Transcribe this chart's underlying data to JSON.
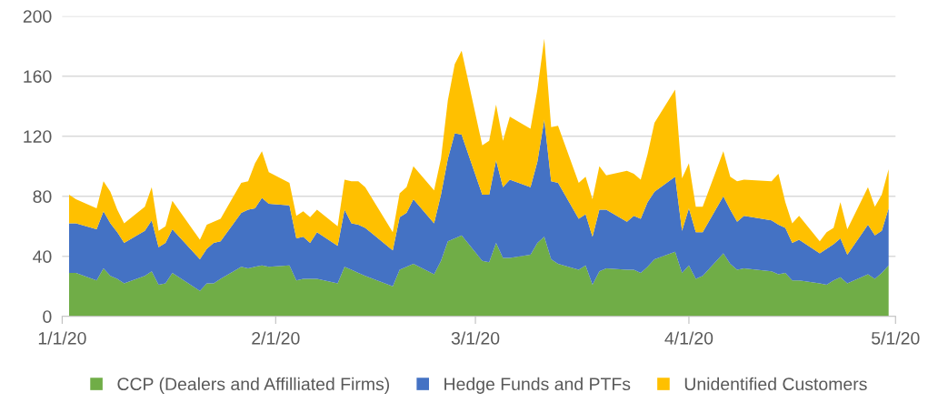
{
  "chart_data": {
    "type": "area",
    "stacked": true,
    "x": [
      "2020-01-02",
      "2020-01-03",
      "2020-01-06",
      "2020-01-07",
      "2020-01-08",
      "2020-01-09",
      "2020-01-10",
      "2020-01-13",
      "2020-01-14",
      "2020-01-15",
      "2020-01-16",
      "2020-01-17",
      "2020-01-21",
      "2020-01-22",
      "2020-01-23",
      "2020-01-24",
      "2020-01-27",
      "2020-01-28",
      "2020-01-29",
      "2020-01-30",
      "2020-01-31",
      "2020-02-03",
      "2020-02-04",
      "2020-02-05",
      "2020-02-06",
      "2020-02-07",
      "2020-02-10",
      "2020-02-11",
      "2020-02-12",
      "2020-02-13",
      "2020-02-14",
      "2020-02-18",
      "2020-02-19",
      "2020-02-20",
      "2020-02-21",
      "2020-02-24",
      "2020-02-25",
      "2020-02-26",
      "2020-02-27",
      "2020-02-28",
      "2020-03-02",
      "2020-03-03",
      "2020-03-04",
      "2020-03-05",
      "2020-03-06",
      "2020-03-09",
      "2020-03-10",
      "2020-03-11",
      "2020-03-12",
      "2020-03-13",
      "2020-03-16",
      "2020-03-17",
      "2020-03-18",
      "2020-03-19",
      "2020-03-20",
      "2020-03-23",
      "2020-03-24",
      "2020-03-25",
      "2020-03-26",
      "2020-03-27",
      "2020-03-30",
      "2020-03-31",
      "2020-04-01",
      "2020-04-02",
      "2020-04-03",
      "2020-04-06",
      "2020-04-07",
      "2020-04-08",
      "2020-04-09",
      "2020-04-13",
      "2020-04-14",
      "2020-04-15",
      "2020-04-16",
      "2020-04-17",
      "2020-04-20",
      "2020-04-21",
      "2020-04-22",
      "2020-04-23",
      "2020-04-24",
      "2020-04-27",
      "2020-04-28",
      "2020-04-29",
      "2020-04-30"
    ],
    "series": [
      {
        "name": "CCP (Dealers and Affilliated Firms)",
        "color": "#70ad47",
        "values": [
          29,
          29,
          24,
          32,
          27,
          25,
          22,
          27,
          30,
          21,
          22,
          29,
          17,
          22,
          22,
          25,
          33,
          32,
          33,
          34,
          33,
          34,
          24,
          25,
          25,
          25,
          22,
          33,
          31,
          29,
          27,
          20,
          31,
          33,
          35,
          28,
          37,
          50,
          52,
          54,
          37,
          36,
          49,
          39,
          39,
          41,
          49,
          53,
          38,
          35,
          31,
          34,
          21,
          30,
          32,
          31,
          31,
          29,
          33,
          38,
          43,
          29,
          34,
          25,
          27,
          42,
          35,
          31,
          32,
          30,
          28,
          29,
          24,
          24,
          22,
          21,
          24,
          26,
          22,
          28,
          25,
          29,
          34
        ]
      },
      {
        "name": "Hedge Funds and PTFs",
        "color": "#4472c4",
        "values": [
          33,
          33,
          34,
          38,
          35,
          31,
          27,
          30,
          34,
          25,
          27,
          29,
          21,
          23,
          27,
          25,
          36,
          39,
          39,
          45,
          42,
          40,
          28,
          28,
          24,
          31,
          25,
          38,
          31,
          32,
          32,
          24,
          35,
          36,
          43,
          34,
          44,
          55,
          70,
          67,
          44,
          45,
          55,
          47,
          52,
          45,
          54,
          78,
          52,
          54,
          34,
          34,
          32,
          41,
          39,
          32,
          36,
          36,
          43,
          45,
          50,
          28,
          38,
          31,
          29,
          38,
          36,
          32,
          35,
          34,
          33,
          30,
          25,
          27,
          20,
          24,
          24,
          26,
          19,
          33,
          29,
          28,
          38
        ]
      },
      {
        "name": "Unidentified Customers",
        "color": "#ffc000",
        "values": [
          19,
          16,
          14,
          20,
          21,
          15,
          13,
          16,
          22,
          11,
          11,
          19,
          13,
          16,
          14,
          15,
          20,
          19,
          30,
          31,
          21,
          15,
          15,
          17,
          17,
          15,
          13,
          20,
          28,
          29,
          27,
          12,
          16,
          17,
          22,
          22,
          24,
          39,
          46,
          56,
          33,
          36,
          37,
          31,
          42,
          39,
          48,
          54,
          36,
          38,
          24,
          25,
          25,
          29,
          23,
          34,
          28,
          26,
          32,
          46,
          58,
          35,
          30,
          17,
          17,
          30,
          22,
          27,
          24,
          26,
          34,
          17,
          13,
          16,
          8,
          11,
          11,
          24,
          17,
          25,
          19,
          24,
          26
        ]
      }
    ],
    "xlim": [
      "2020-01-01",
      "2020-05-01"
    ],
    "xticks": [
      {
        "value": "2020-01-01",
        "label": "1/1/20"
      },
      {
        "value": "2020-02-01",
        "label": "2/1/20"
      },
      {
        "value": "2020-03-01",
        "label": "3/1/20"
      },
      {
        "value": "2020-04-01",
        "label": "4/1/20"
      },
      {
        "value": "2020-05-01",
        "label": "5/1/20"
      }
    ],
    "ylim": [
      0,
      200
    ],
    "yticks": [
      0,
      40,
      80,
      120,
      160,
      200
    ],
    "grid": "y",
    "legend": "bottom"
  }
}
